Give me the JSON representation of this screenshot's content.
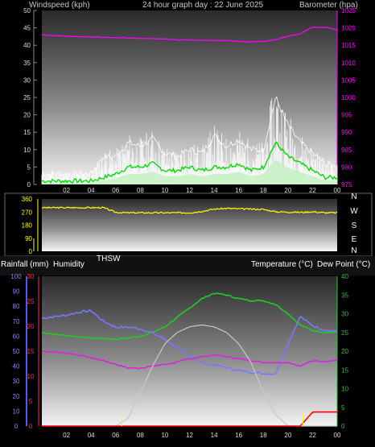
{
  "header": {
    "left_title": "Windspeed (kph)",
    "center_title": "24 hour graph day : 22 June 2025",
    "right_title": "Barometer (hpa)"
  },
  "middle_header": {
    "rain": "Rainfall (mm)",
    "humidity": "Humidity",
    "thsw": "THSW",
    "temperature": "Temperature (°C)",
    "dew_point": "Dew Point (°C)"
  },
  "compass": [
    "N",
    "W",
    "S",
    "E",
    "N"
  ],
  "colors": {
    "wind_avg": "#00dd00",
    "gust": "#ffffff",
    "baro": "#ff00ff",
    "dir": "#ffff00",
    "temp": "#22cc22",
    "thsw": "#c8c8c8",
    "humidity": "#7777ff",
    "dew": "#dd22dd",
    "rain": "#ff0000",
    "rain_axis": "#ff3333",
    "hum_axis": "#5555ff",
    "temp_axis": "#22cc22"
  },
  "chart_data": [
    {
      "type": "line",
      "title": "24 hour graph day : 22 June 2025",
      "x_ticks": [
        "02",
        "04",
        "06",
        "08",
        "10",
        "12",
        "14",
        "16",
        "18",
        "20",
        "22",
        "00"
      ],
      "left_axis": {
        "label": "Windspeed (kph)",
        "ticks": [
          0,
          5,
          10,
          15,
          20,
          25,
          30,
          35,
          40,
          45,
          50
        ],
        "ylim": [
          0,
          50
        ]
      },
      "right_axis": {
        "label": "Barometer (hpa)",
        "ticks": [
          975,
          980,
          985,
          990,
          995,
          1000,
          1005,
          1010,
          1015,
          1020,
          1025
        ],
        "ylim": [
          975,
          1025
        ]
      },
      "x_hours": [
        0,
        1,
        2,
        3,
        4,
        5,
        6,
        7,
        8,
        9,
        10,
        11,
        12,
        13,
        14,
        15,
        16,
        17,
        18,
        19,
        20,
        21,
        22,
        23,
        24
      ],
      "series": [
        {
          "name": "Windspeed (kph)",
          "axis": "left",
          "values": [
            1,
            1,
            1,
            1,
            1,
            2,
            3,
            5,
            5,
            6,
            4,
            4,
            5,
            4,
            5,
            5,
            6,
            4,
            5,
            12,
            8,
            6,
            4,
            2,
            2
          ]
        },
        {
          "name": "Gust",
          "axis": "left",
          "values": [
            3,
            3,
            3,
            3,
            3,
            8,
            8,
            12,
            11,
            13,
            9,
            8,
            10,
            9,
            14,
            11,
            13,
            10,
            10,
            25,
            17,
            12,
            9,
            6,
            5
          ]
        },
        {
          "name": "Barometer (hpa)",
          "axis": "right",
          "values": [
            1018,
            1017.8,
            1017.6,
            1017.5,
            1017.4,
            1017.3,
            1017.2,
            1017.1,
            1017,
            1016.9,
            1016.8,
            1016.6,
            1016.5,
            1016.4,
            1016.4,
            1016.3,
            1016.1,
            1016,
            1016.1,
            1016.6,
            1017.6,
            1018.3,
            1020.2,
            1020.2,
            1019.4
          ]
        }
      ]
    },
    {
      "type": "line",
      "left_axis": {
        "ticks": [
          0,
          90,
          180,
          270,
          360
        ],
        "ylim": [
          0,
          360
        ]
      },
      "right_axis": {
        "labels": [
          "N",
          "W",
          "S",
          "E",
          "N"
        ]
      },
      "series": [
        {
          "name": "Wind direction",
          "values": [
            300,
            300,
            300,
            300,
            300,
            300,
            268,
            265,
            265,
            265,
            265,
            265,
            265,
            275,
            290,
            295,
            292,
            290,
            288,
            272,
            270,
            268,
            272,
            265,
            265
          ]
        }
      ]
    },
    {
      "type": "line",
      "x_ticks": [
        "02",
        "04",
        "06",
        "08",
        "10",
        "12",
        "14",
        "16",
        "18",
        "20",
        "22",
        "00"
      ],
      "rain_axis": {
        "label": "Rainfall (mm)",
        "ticks": [
          0,
          5,
          10,
          15,
          20,
          25,
          30
        ],
        "ylim": [
          0,
          30
        ]
      },
      "humidity_axis": {
        "label": "Humidity",
        "ticks": [
          0,
          10,
          20,
          30,
          40,
          50,
          60,
          70,
          80,
          90,
          100
        ],
        "ylim": [
          0,
          100
        ]
      },
      "temp_axis": {
        "label": "Temperature (°C)",
        "ticks": [
          0,
          5,
          10,
          15,
          20,
          25,
          30,
          35,
          40
        ],
        "ylim": [
          0,
          40
        ]
      },
      "series": [
        {
          "name": "Temperature (°C)",
          "axis": "temp",
          "values": [
            25,
            24.5,
            24.2,
            23.8,
            23.5,
            23.4,
            23.2,
            23.5,
            24,
            25,
            26.5,
            29,
            31.5,
            34,
            35.5,
            35,
            34,
            33.5,
            33.5,
            32.5,
            30,
            27,
            25.5,
            25,
            25
          ]
        },
        {
          "name": "Humidity",
          "axis": "humidity",
          "values": [
            72,
            73,
            74,
            76,
            77,
            70,
            66,
            66,
            65,
            62,
            58,
            52,
            47,
            42,
            41,
            39,
            37,
            36,
            35,
            35,
            55,
            73,
            67,
            64,
            63
          ]
        },
        {
          "name": "Dew Point (°C)",
          "axis": "temp",
          "values": [
            20,
            19.8,
            19.5,
            19,
            18.2,
            17.5,
            16.5,
            15.5,
            15.5,
            16,
            16.5,
            17,
            18,
            18.5,
            19,
            18.5,
            18,
            17.5,
            17,
            17,
            17,
            16,
            17.5,
            17.3,
            17.5
          ]
        },
        {
          "name": "THSW",
          "axis": "temp",
          "values": [
            0,
            0,
            0,
            0,
            0,
            0,
            0,
            2,
            9,
            16,
            22,
            25,
            26.5,
            27,
            26.5,
            25,
            22,
            17,
            9,
            3,
            0,
            0,
            0,
            0,
            0
          ]
        },
        {
          "name": "Rainfall (mm)",
          "axis": "rain",
          "values": [
            0,
            0,
            0,
            0,
            0,
            0,
            0,
            0,
            0,
            0,
            0,
            0,
            0,
            0,
            0,
            0,
            0,
            0,
            0,
            0,
            0,
            0,
            2.8,
            2.8,
            2.8
          ]
        }
      ]
    }
  ]
}
